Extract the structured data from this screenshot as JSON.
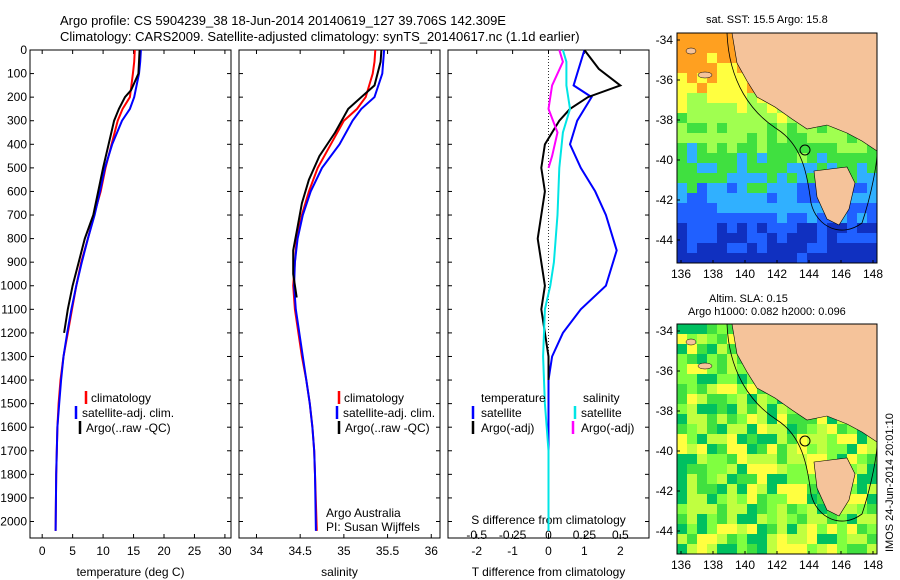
{
  "header": {
    "line1": "Argo profile: CS 5904239_38 18-Jun-2014 20140619_127 39.706S 142.309E",
    "line2": "Climatology: CARS2009. Satellite-adjusted climatology: synTS_20140617.nc (1.1d earlier)"
  },
  "colors": {
    "climatology": "#ff0000",
    "satellite": "#0000ff",
    "argo": "#000000",
    "salinity_satellite": "#00e5e5",
    "salinity_argo": "#ff00ff",
    "land": "#f5c39a"
  },
  "chart_data": [
    {
      "type": "line",
      "panel": "temperature",
      "xlabel": "temperature (deg C)",
      "xlim": [
        -2,
        31
      ],
      "xticks": [
        "0",
        "5",
        "10",
        "15",
        "20",
        "25",
        "30"
      ],
      "xtick_values": [
        0,
        5,
        10,
        15,
        20,
        25,
        30
      ],
      "ylim": [
        2070,
        0
      ],
      "yticks": [
        "0",
        "100",
        "200",
        "300",
        "400",
        "500",
        "600",
        "700",
        "800",
        "900",
        "1000",
        "1100",
        "1200",
        "1300",
        "1400",
        "1500",
        "1600",
        "1700",
        "1800",
        "1900",
        "2000"
      ],
      "ytick_values": [
        0,
        100,
        200,
        300,
        400,
        500,
        600,
        700,
        800,
        900,
        1000,
        1100,
        1200,
        1300,
        1400,
        1500,
        1600,
        1700,
        1800,
        1900,
        2000
      ],
      "series": [
        {
          "name": "climatology",
          "color": "#ff0000",
          "x": [
            15.2,
            15.1,
            14.9,
            14.4,
            13.2,
            12.4,
            11.4,
            10.4,
            9.6,
            8.5,
            7.5,
            6.4,
            5.6,
            4.9,
            4.2,
            3.5,
            3.0,
            2.7,
            2.5,
            2.4,
            2.3,
            2.2
          ],
          "y": [
            0,
            50,
            100,
            200,
            250,
            300,
            400,
            500,
            600,
            700,
            800,
            900,
            1000,
            1100,
            1200,
            1300,
            1400,
            1500,
            1600,
            1700,
            1800,
            2040
          ]
        },
        {
          "name": "satellite-adj. clim.",
          "color": "#0000ff",
          "x": [
            16.2,
            16.1,
            15.9,
            15.1,
            14.4,
            13.1,
            11.5,
            10.3,
            9.5,
            8.6,
            7.5,
            6.5,
            5.6,
            4.8,
            4.1,
            3.5,
            3.1,
            2.8,
            2.5,
            2.4,
            2.3,
            2.2
          ],
          "y": [
            0,
            50,
            100,
            200,
            250,
            300,
            400,
            500,
            600,
            700,
            800,
            900,
            1000,
            1100,
            1200,
            1300,
            1400,
            1500,
            1600,
            1700,
            1800,
            2040
          ]
        },
        {
          "name": "Argo(..raw -QC)",
          "color": "#000000",
          "x": [
            16.0,
            15.9,
            15.8,
            14.6,
            13.6,
            12.6,
            11.8,
            10.9,
            10.0,
            9.2,
            8.4,
            7.0,
            6.0,
            5.0,
            4.2,
            3.6
          ],
          "y": [
            0,
            50,
            100,
            170,
            200,
            250,
            300,
            400,
            500,
            600,
            700,
            800,
            900,
            1000,
            1100,
            1200
          ]
        }
      ]
    },
    {
      "type": "line",
      "panel": "salinity",
      "xlabel": "salinity",
      "xlim": [
        33.8,
        36.1
      ],
      "xticks": [
        "34",
        "34.5",
        "35",
        "35.5",
        "36"
      ],
      "xtick_values": [
        34,
        34.5,
        35,
        35.5,
        36
      ],
      "ylim": [
        2070,
        0
      ],
      "series": [
        {
          "name": "climatology",
          "color": "#ff0000",
          "x": [
            35.36,
            35.35,
            35.33,
            35.25,
            35.15,
            35.0,
            34.85,
            34.7,
            34.6,
            34.52,
            34.46,
            34.44,
            34.42,
            34.44,
            34.48,
            34.52,
            34.57,
            34.61,
            34.64,
            34.66,
            34.67,
            34.69
          ],
          "y": [
            0,
            50,
            100,
            200,
            250,
            300,
            400,
            500,
            600,
            700,
            800,
            900,
            1000,
            1100,
            1200,
            1300,
            1400,
            1500,
            1600,
            1700,
            1800,
            2040
          ]
        },
        {
          "name": "satellite-adj. clim.",
          "color": "#0000ff",
          "x": [
            35.46,
            35.45,
            35.44,
            35.35,
            35.2,
            35.1,
            34.95,
            34.75,
            34.62,
            34.53,
            34.47,
            34.44,
            34.43,
            34.45,
            34.49,
            34.53,
            34.57,
            34.61,
            34.64,
            34.66,
            34.67,
            34.68
          ],
          "y": [
            0,
            50,
            100,
            200,
            250,
            300,
            400,
            500,
            600,
            700,
            800,
            900,
            1000,
            1100,
            1200,
            1300,
            1400,
            1500,
            1600,
            1700,
            1800,
            2040
          ]
        },
        {
          "name": "Argo(..raw -QC)",
          "color": "#000000",
          "x": [
            35.43,
            35.42,
            35.35,
            35.2,
            35.05,
            34.9,
            34.72,
            34.6,
            34.52,
            34.47,
            34.42,
            34.42,
            34.46
          ],
          "y": [
            0,
            50,
            150,
            200,
            250,
            350,
            450,
            550,
            650,
            750,
            850,
            950,
            1050
          ]
        }
      ]
    },
    {
      "type": "line",
      "panel": "difference",
      "xlabel": "T difference from climatology",
      "xlabel_top": "S difference from climatology",
      "xlim": [
        -2.8,
        2.8
      ],
      "xticks": [
        "-2",
        "-1",
        "0",
        "1",
        "2"
      ],
      "xtick_values": [
        -2,
        -1,
        0,
        1,
        2
      ],
      "xticks_top": [
        "-0.5",
        "-0.25",
        "0",
        "0.25",
        "0.5"
      ],
      "xtick_values_top": [
        -0.5,
        -0.25,
        0,
        0.25,
        0.5
      ],
      "ylim": [
        2070,
        0
      ],
      "legend": {
        "temperature_title": "temperature",
        "salinity_title": "salinity",
        "temperature_items": [
          "satellite",
          "Argo(-adj)"
        ],
        "salinity_items": [
          "satellite",
          "Argo(-adj)"
        ]
      },
      "series": [
        {
          "name": "temperature satellite",
          "color": "#0000ff",
          "x": [
            1.0,
            0.9,
            0.8,
            0.7,
            1.2,
            0.8,
            0.6,
            0.9,
            1.3,
            1.6,
            1.9,
            1.6,
            0.9,
            0.4,
            0.1,
            0.0,
            0.0,
            0.0,
            0.0,
            0.0
          ],
          "y": [
            0,
            50,
            100,
            150,
            200,
            300,
            400,
            500,
            600,
            700,
            850,
            1000,
            1100,
            1200,
            1300,
            1400,
            1500,
            1600,
            1800,
            2040
          ]
        },
        {
          "name": "temperature Argo(-adj)",
          "color": "#000000",
          "x": [
            1.0,
            1.4,
            2.0,
            1.1,
            0.6,
            0.3,
            -0.1,
            -0.2,
            -0.1,
            -0.2,
            -0.3,
            -0.2,
            -0.1,
            -0.2,
            -0.1,
            0.0,
            0.0
          ],
          "y": [
            0,
            80,
            150,
            200,
            250,
            300,
            400,
            500,
            600,
            700,
            800,
            900,
            1000,
            1100,
            1200,
            1300,
            1400
          ]
        },
        {
          "name": "salinity satellite",
          "color": "#00e5e5",
          "x": [
            0.4,
            0.5,
            0.5,
            0.6,
            0.4,
            0.3,
            0.25,
            0.2,
            0.15,
            0.05,
            -0.1,
            -0.15,
            -0.1,
            0.0,
            0.0
          ],
          "y": [
            0,
            50,
            150,
            250,
            350,
            500,
            700,
            800,
            900,
            1000,
            1100,
            1300,
            1500,
            1700,
            2040
          ]
        },
        {
          "name": "salinity Argo(-adj)",
          "color": "#ff00ff",
          "x": [
            0.3,
            0.4,
            0.1,
            0.0,
            0.25,
            0.1,
            0.0
          ],
          "y": [
            0,
            50,
            150,
            250,
            350,
            450,
            500
          ]
        }
      ],
      "annotations": [
        "Argo Australia",
        "PI: Susan Wijffels"
      ]
    }
  ],
  "maps": [
    {
      "title": "sat. SST: 15.5 Argo: 15.8",
      "xticks": [
        "136",
        "138",
        "140",
        "142",
        "144",
        "146",
        "148"
      ],
      "yticks": [
        "-34",
        "-36",
        "-38",
        "-40",
        "-42",
        "-44"
      ],
      "colors": [
        "#ffa020",
        "#ffff40",
        "#a0ff50",
        "#40e040",
        "#30b0ff",
        "#2060ff",
        "#1030c0"
      ]
    },
    {
      "title_line1": "Altim. SLA: 0.15",
      "title_line2": "Argo h1000: 0.082 h2000: 0.096",
      "xticks": [
        "136",
        "138",
        "140",
        "142",
        "144",
        "146",
        "148"
      ],
      "yticks": [
        "-34",
        "-36",
        "-38",
        "-40",
        "-42",
        "-44"
      ],
      "colors": [
        "#ffff40",
        "#c0ff40",
        "#80ff40",
        "#40e040",
        "#00c060"
      ]
    }
  ],
  "footer": {
    "timestamp": "IMOS 24-Jun-2014 20:01:10"
  }
}
